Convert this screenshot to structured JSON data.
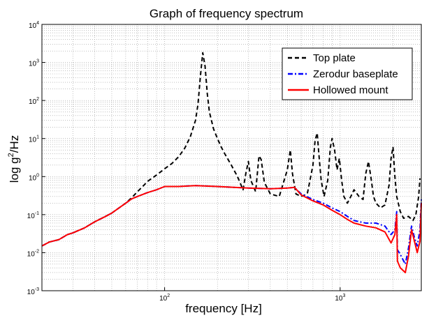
{
  "chart_data": {
    "type": "line",
    "title": "Graph of frequency spectrum",
    "xlabel": "frequency [Hz]",
    "ylabel": "log g²/Hz",
    "ylabel_parts": [
      "log g",
      "2",
      "/Hz"
    ],
    "xscale": "log",
    "yscale": "log",
    "xlim": [
      20,
      2900
    ],
    "ylim": [
      0.001,
      10000
    ],
    "x_ticks": [
      {
        "base": "10",
        "exp": "2",
        "value": 100
      },
      {
        "base": "10",
        "exp": "3",
        "value": 1000
      }
    ],
    "y_ticks": [
      {
        "base": "10",
        "exp": "-3",
        "value": 0.001
      },
      {
        "base": "10",
        "exp": "-2",
        "value": 0.01
      },
      {
        "base": "10",
        "exp": "-1",
        "value": 0.1
      },
      {
        "base": "10",
        "exp": "0",
        "value": 1
      },
      {
        "base": "10",
        "exp": "1",
        "value": 10
      },
      {
        "base": "10",
        "exp": "2",
        "value": 100
      },
      {
        "base": "10",
        "exp": "3",
        "value": 1000
      },
      {
        "base": "10",
        "exp": "4",
        "value": 10000
      }
    ],
    "grid": true,
    "legend_position": "top-right",
    "series": [
      {
        "name": "Top plate",
        "color": "#000000",
        "style": "dashed",
        "points": [
          [
            20,
            0.015
          ],
          [
            22,
            0.019
          ],
          [
            25,
            0.022
          ],
          [
            28,
            0.03
          ],
          [
            30,
            0.033
          ],
          [
            35,
            0.045
          ],
          [
            40,
            0.065
          ],
          [
            45,
            0.085
          ],
          [
            50,
            0.11
          ],
          [
            55,
            0.15
          ],
          [
            60,
            0.2
          ],
          [
            65,
            0.28
          ],
          [
            70,
            0.4
          ],
          [
            75,
            0.55
          ],
          [
            80,
            0.75
          ],
          [
            90,
            1.1
          ],
          [
            100,
            1.6
          ],
          [
            110,
            2.2
          ],
          [
            120,
            3.3
          ],
          [
            130,
            5.5
          ],
          [
            140,
            11
          ],
          [
            150,
            30
          ],
          [
            155,
            80
          ],
          [
            160,
            450
          ],
          [
            165,
            1800
          ],
          [
            170,
            800
          ],
          [
            175,
            150
          ],
          [
            180,
            50
          ],
          [
            190,
            18
          ],
          [
            200,
            10
          ],
          [
            210,
            6
          ],
          [
            220,
            4
          ],
          [
            240,
            2
          ],
          [
            260,
            1
          ],
          [
            280,
            0.45
          ],
          [
            290,
            1.2
          ],
          [
            300,
            2.5
          ],
          [
            310,
            0.8
          ],
          [
            330,
            0.4
          ],
          [
            345,
            3.5
          ],
          [
            355,
            2.8
          ],
          [
            370,
            0.7
          ],
          [
            400,
            0.35
          ],
          [
            450,
            0.3
          ],
          [
            500,
            1.5
          ],
          [
            520,
            5
          ],
          [
            535,
            1.2
          ],
          [
            560,
            0.35
          ],
          [
            600,
            0.3
          ],
          [
            650,
            0.35
          ],
          [
            700,
            2
          ],
          [
            720,
            9
          ],
          [
            740,
            14
          ],
          [
            760,
            3
          ],
          [
            780,
            0.8
          ],
          [
            810,
            0.3
          ],
          [
            850,
            0.8
          ],
          [
            880,
            6
          ],
          [
            900,
            10
          ],
          [
            930,
            5
          ],
          [
            960,
            1.5
          ],
          [
            990,
            3
          ],
          [
            1020,
            0.8
          ],
          [
            1050,
            0.3
          ],
          [
            1100,
            0.2
          ],
          [
            1150,
            0.3
          ],
          [
            1200,
            0.45
          ],
          [
            1280,
            0.3
          ],
          [
            1350,
            0.25
          ],
          [
            1400,
            1.2
          ],
          [
            1450,
            2.5
          ],
          [
            1500,
            0.9
          ],
          [
            1550,
            0.3
          ],
          [
            1600,
            0.2
          ],
          [
            1700,
            0.15
          ],
          [
            1800,
            0.18
          ],
          [
            1900,
            0.6
          ],
          [
            1950,
            3
          ],
          [
            2000,
            6
          ],
          [
            2050,
            1
          ],
          [
            2100,
            0.3
          ],
          [
            2200,
            0.12
          ],
          [
            2300,
            0.08
          ],
          [
            2450,
            0.09
          ],
          [
            2600,
            0.07
          ],
          [
            2700,
            0.1
          ],
          [
            2800,
            0.3
          ],
          [
            2850,
            0.9
          ]
        ]
      },
      {
        "name": "Zerodur baseplate",
        "color": "#0000ff",
        "style": "dashdot",
        "points": [
          [
            20,
            0.015
          ],
          [
            22,
            0.019
          ],
          [
            25,
            0.022
          ],
          [
            28,
            0.03
          ],
          [
            30,
            0.033
          ],
          [
            35,
            0.045
          ],
          [
            40,
            0.065
          ],
          [
            45,
            0.085
          ],
          [
            50,
            0.11
          ],
          [
            55,
            0.15
          ],
          [
            60,
            0.2
          ],
          [
            65,
            0.26
          ],
          [
            70,
            0.3
          ],
          [
            80,
            0.38
          ],
          [
            90,
            0.45
          ],
          [
            100,
            0.55
          ],
          [
            120,
            0.55
          ],
          [
            150,
            0.58
          ],
          [
            200,
            0.55
          ],
          [
            250,
            0.52
          ],
          [
            300,
            0.5
          ],
          [
            400,
            0.48
          ],
          [
            500,
            0.5
          ],
          [
            550,
            0.52
          ],
          [
            600,
            0.35
          ],
          [
            700,
            0.25
          ],
          [
            800,
            0.2
          ],
          [
            900,
            0.15
          ],
          [
            1000,
            0.12
          ],
          [
            1100,
            0.09
          ],
          [
            1200,
            0.07
          ],
          [
            1400,
            0.06
          ],
          [
            1600,
            0.06
          ],
          [
            1800,
            0.05
          ],
          [
            1950,
            0.03
          ],
          [
            2050,
            0.04
          ],
          [
            2100,
            0.12
          ],
          [
            2120,
            0.012
          ],
          [
            2200,
            0.009
          ],
          [
            2350,
            0.005
          ],
          [
            2450,
            0.013
          ],
          [
            2550,
            0.05
          ],
          [
            2650,
            0.025
          ],
          [
            2750,
            0.015
          ],
          [
            2850,
            0.04
          ],
          [
            2900,
            0.25
          ]
        ]
      },
      {
        "name": "Hollowed mount",
        "color": "#ff0000",
        "style": "solid",
        "points": [
          [
            20,
            0.015
          ],
          [
            22,
            0.019
          ],
          [
            25,
            0.022
          ],
          [
            28,
            0.03
          ],
          [
            30,
            0.033
          ],
          [
            35,
            0.045
          ],
          [
            40,
            0.065
          ],
          [
            45,
            0.085
          ],
          [
            50,
            0.11
          ],
          [
            55,
            0.15
          ],
          [
            60,
            0.2
          ],
          [
            65,
            0.26
          ],
          [
            70,
            0.3
          ],
          [
            80,
            0.38
          ],
          [
            90,
            0.45
          ],
          [
            100,
            0.55
          ],
          [
            120,
            0.55
          ],
          [
            150,
            0.58
          ],
          [
            200,
            0.55
          ],
          [
            250,
            0.52
          ],
          [
            300,
            0.5
          ],
          [
            400,
            0.48
          ],
          [
            500,
            0.5
          ],
          [
            550,
            0.52
          ],
          [
            600,
            0.33
          ],
          [
            700,
            0.23
          ],
          [
            800,
            0.18
          ],
          [
            900,
            0.13
          ],
          [
            1000,
            0.1
          ],
          [
            1100,
            0.075
          ],
          [
            1200,
            0.06
          ],
          [
            1400,
            0.05
          ],
          [
            1600,
            0.045
          ],
          [
            1800,
            0.035
          ],
          [
            1950,
            0.018
          ],
          [
            2050,
            0.03
          ],
          [
            2100,
            0.1
          ],
          [
            2120,
            0.006
          ],
          [
            2200,
            0.004
          ],
          [
            2350,
            0.003
          ],
          [
            2450,
            0.008
          ],
          [
            2550,
            0.04
          ],
          [
            2650,
            0.02
          ],
          [
            2750,
            0.01
          ],
          [
            2850,
            0.02
          ],
          [
            2900,
            0.2
          ]
        ]
      }
    ]
  }
}
